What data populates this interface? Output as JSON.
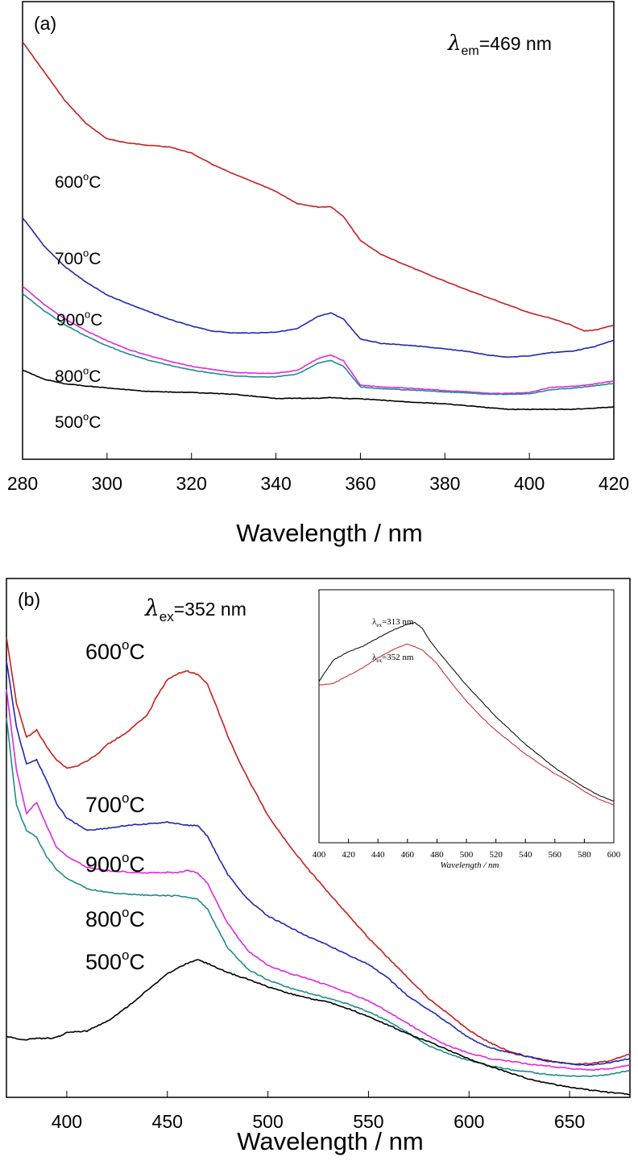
{
  "chart_data": [
    {
      "type": "line",
      "panel_label": "(a)",
      "annotation": {
        "symbol": "λ",
        "sub": "em",
        "text": "=469 nm"
      },
      "xlabel": "Wavelength / nm",
      "ylabel": "",
      "xlim": [
        280,
        420
      ],
      "ylim": [
        0,
        1
      ],
      "xticks": [
        280,
        300,
        320,
        340,
        360,
        380,
        400,
        420
      ],
      "series": [
        {
          "name": "600°C",
          "color": "#c81e1e",
          "x": [
            280,
            285,
            290,
            295,
            300,
            305,
            310,
            315,
            320,
            325,
            330,
            335,
            340,
            345,
            350,
            353,
            356,
            360,
            365,
            370,
            375,
            380,
            385,
            390,
            395,
            400,
            405,
            410,
            413,
            416,
            420
          ],
          "y": [
            0.912,
            0.848,
            0.784,
            0.734,
            0.7,
            0.691,
            0.686,
            0.682,
            0.669,
            0.644,
            0.623,
            0.605,
            0.585,
            0.559,
            0.551,
            0.552,
            0.53,
            0.478,
            0.447,
            0.427,
            0.408,
            0.389,
            0.371,
            0.354,
            0.337,
            0.32,
            0.308,
            0.293,
            0.28,
            0.283,
            0.293
          ]
        },
        {
          "name": "700°C",
          "color": "#1e28b4",
          "x": [
            280,
            285,
            290,
            295,
            300,
            305,
            310,
            315,
            320,
            325,
            330,
            335,
            340,
            345,
            350,
            353,
            356,
            360,
            365,
            370,
            375,
            380,
            385,
            390,
            395,
            400,
            405,
            410,
            415,
            420
          ],
          "y": [
            0.528,
            0.467,
            0.421,
            0.387,
            0.359,
            0.34,
            0.322,
            0.305,
            0.291,
            0.28,
            0.276,
            0.276,
            0.278,
            0.285,
            0.312,
            0.32,
            0.306,
            0.263,
            0.253,
            0.25,
            0.246,
            0.241,
            0.236,
            0.228,
            0.223,
            0.226,
            0.233,
            0.236,
            0.245,
            0.26
          ]
        },
        {
          "name": "900°C",
          "color": "#e028e0",
          "x": [
            280,
            285,
            290,
            295,
            300,
            305,
            310,
            315,
            320,
            325,
            330,
            335,
            340,
            345,
            350,
            353,
            356,
            360,
            365,
            370,
            375,
            380,
            385,
            390,
            395,
            400,
            405,
            410,
            415,
            420
          ],
          "y": [
            0.378,
            0.339,
            0.307,
            0.281,
            0.259,
            0.24,
            0.226,
            0.214,
            0.203,
            0.196,
            0.19,
            0.188,
            0.188,
            0.194,
            0.22,
            0.228,
            0.215,
            0.162,
            0.158,
            0.156,
            0.153,
            0.15,
            0.148,
            0.144,
            0.144,
            0.146,
            0.157,
            0.159,
            0.164,
            0.171
          ]
        },
        {
          "name": "800°C",
          "color": "#1e8c8c",
          "x": [
            280,
            285,
            290,
            295,
            300,
            305,
            310,
            315,
            320,
            325,
            330,
            335,
            340,
            345,
            350,
            353,
            356,
            360,
            365,
            370,
            375,
            380,
            385,
            390,
            395,
            400,
            405,
            410,
            415,
            420
          ],
          "y": [
            0.362,
            0.325,
            0.294,
            0.269,
            0.248,
            0.23,
            0.216,
            0.205,
            0.195,
            0.188,
            0.182,
            0.18,
            0.18,
            0.186,
            0.21,
            0.216,
            0.203,
            0.158,
            0.154,
            0.152,
            0.15,
            0.147,
            0.145,
            0.142,
            0.142,
            0.143,
            0.152,
            0.155,
            0.16,
            0.166
          ]
        },
        {
          "name": "500°C",
          "color": "#000000",
          "x": [
            280,
            285,
            290,
            295,
            300,
            305,
            310,
            320,
            330,
            340,
            350,
            353,
            356,
            360,
            370,
            380,
            390,
            395,
            400,
            410,
            420
          ],
          "y": [
            0.195,
            0.175,
            0.165,
            0.16,
            0.156,
            0.152,
            0.148,
            0.146,
            0.142,
            0.133,
            0.133,
            0.135,
            0.133,
            0.132,
            0.126,
            0.121,
            0.113,
            0.109,
            0.109,
            0.109,
            0.114
          ]
        }
      ]
    },
    {
      "type": "line",
      "panel_label": "(b)",
      "annotation": {
        "symbol": "λ",
        "sub": "ex",
        "text": "=352 nm"
      },
      "xlabel": "Wavelength / nm",
      "ylabel": "",
      "xlim": [
        370,
        680
      ],
      "ylim": [
        0,
        1
      ],
      "xticks": [
        400,
        450,
        500,
        550,
        600,
        650
      ],
      "series": [
        {
          "name": "600°C",
          "color": "#c81e1e",
          "x": [
            370,
            375,
            380,
            385,
            390,
            395,
            400,
            405,
            410,
            415,
            420,
            430,
            440,
            445,
            450,
            455,
            460,
            465,
            470,
            475,
            480,
            485,
            490,
            500,
            510,
            520,
            530,
            540,
            550,
            560,
            570,
            580,
            590,
            600,
            610,
            620,
            630,
            640,
            650,
            660,
            670,
            680
          ],
          "y": [
            0.97,
            0.83,
            0.759,
            0.774,
            0.739,
            0.711,
            0.694,
            0.698,
            0.709,
            0.722,
            0.743,
            0.77,
            0.805,
            0.847,
            0.88,
            0.893,
            0.898,
            0.891,
            0.871,
            0.817,
            0.762,
            0.715,
            0.672,
            0.594,
            0.534,
            0.481,
            0.432,
            0.384,
            0.336,
            0.293,
            0.25,
            0.208,
            0.175,
            0.141,
            0.116,
            0.097,
            0.085,
            0.075,
            0.071,
            0.071,
            0.077,
            0.092
          ]
        },
        {
          "name": "700°C",
          "color": "#1e28b4",
          "x": [
            370,
            375,
            380,
            385,
            390,
            395,
            400,
            410,
            420,
            430,
            440,
            450,
            455,
            460,
            465,
            470,
            475,
            480,
            490,
            500,
            510,
            520,
            530,
            540,
            550,
            560,
            570,
            580,
            590,
            600,
            610,
            620,
            630,
            640,
            650,
            660,
            670,
            680
          ],
          "y": [
            0.92,
            0.78,
            0.702,
            0.712,
            0.667,
            0.618,
            0.589,
            0.563,
            0.567,
            0.573,
            0.576,
            0.58,
            0.577,
            0.573,
            0.573,
            0.55,
            0.509,
            0.47,
            0.417,
            0.382,
            0.36,
            0.339,
            0.32,
            0.3,
            0.28,
            0.25,
            0.212,
            0.185,
            0.156,
            0.125,
            0.105,
            0.094,
            0.085,
            0.077,
            0.07,
            0.068,
            0.073,
            0.082
          ]
        },
        {
          "name": "900°C",
          "color": "#e028e0",
          "x": [
            370,
            375,
            380,
            385,
            390,
            395,
            400,
            410,
            420,
            430,
            440,
            450,
            455,
            460,
            465,
            470,
            475,
            480,
            490,
            500,
            510,
            520,
            530,
            540,
            550,
            560,
            570,
            580,
            590,
            600,
            610,
            620,
            630,
            640,
            650,
            660,
            670,
            680
          ],
          "y": [
            0.86,
            0.69,
            0.598,
            0.622,
            0.572,
            0.527,
            0.508,
            0.485,
            0.478,
            0.475,
            0.473,
            0.474,
            0.473,
            0.478,
            0.473,
            0.451,
            0.408,
            0.367,
            0.309,
            0.278,
            0.262,
            0.25,
            0.236,
            0.22,
            0.203,
            0.18,
            0.154,
            0.129,
            0.108,
            0.093,
            0.082,
            0.076,
            0.07,
            0.066,
            0.061,
            0.058,
            0.06,
            0.068
          ]
        },
        {
          "name": "800°C",
          "color": "#1e8c8c",
          "x": [
            370,
            375,
            380,
            385,
            390,
            395,
            400,
            410,
            420,
            430,
            440,
            450,
            455,
            460,
            465,
            470,
            475,
            480,
            490,
            500,
            510,
            520,
            530,
            540,
            550,
            560,
            570,
            580,
            590,
            600,
            610,
            620,
            630,
            640,
            650,
            660,
            670,
            680
          ],
          "y": [
            0.8,
            0.615,
            0.562,
            0.548,
            0.507,
            0.48,
            0.462,
            0.44,
            0.432,
            0.428,
            0.426,
            0.425,
            0.425,
            0.421,
            0.418,
            0.396,
            0.355,
            0.315,
            0.27,
            0.247,
            0.232,
            0.22,
            0.209,
            0.196,
            0.181,
            0.16,
            0.135,
            0.109,
            0.091,
            0.078,
            0.067,
            0.059,
            0.053,
            0.048,
            0.045,
            0.044,
            0.048,
            0.057
          ]
        },
        {
          "name": "500°C",
          "color": "#000000",
          "x": [
            370,
            375,
            380,
            385,
            390,
            395,
            400,
            410,
            420,
            430,
            440,
            450,
            460,
            465,
            470,
            480,
            490,
            500,
            510,
            520,
            530,
            540,
            550,
            560,
            570,
            580,
            590,
            600,
            610,
            620,
            630,
            640,
            650,
            660,
            670,
            680
          ],
          "y": [
            0.129,
            0.123,
            0.122,
            0.124,
            0.124,
            0.126,
            0.137,
            0.14,
            0.16,
            0.19,
            0.226,
            0.26,
            0.283,
            0.29,
            0.282,
            0.263,
            0.249,
            0.233,
            0.22,
            0.209,
            0.201,
            0.187,
            0.17,
            0.152,
            0.133,
            0.117,
            0.099,
            0.081,
            0.066,
            0.052,
            0.038,
            0.029,
            0.022,
            0.015,
            0.01,
            0.006
          ]
        }
      ],
      "inset": {
        "type": "line",
        "xlabel": "Wavelength / nm",
        "xlim": [
          400,
          600
        ],
        "ylim": [
          0,
          1
        ],
        "xticks": [
          400,
          420,
          440,
          460,
          480,
          500,
          520,
          540,
          560,
          580,
          600
        ],
        "series": [
          {
            "name": "λex=313 nm",
            "color": "#000000",
            "x": [
              400,
              410,
              420,
              430,
              440,
              450,
              460,
              465,
              470,
              475,
              480,
              490,
              500,
              510,
              520,
              530,
              540,
              550,
              560,
              570,
              580,
              590,
              600
            ],
            "y": [
              0.69,
              0.8,
              0.84,
              0.87,
              0.91,
              0.95,
              0.98,
              0.99,
              0.96,
              0.9,
              0.85,
              0.76,
              0.67,
              0.59,
              0.51,
              0.44,
              0.37,
              0.31,
              0.25,
              0.2,
              0.15,
              0.11,
              0.08
            ]
          },
          {
            "name": "λex=352 nm",
            "color": "#c81e1e",
            "x": [
              400,
              410,
              420,
              430,
              440,
              450,
              460,
              470,
              480,
              490,
              500,
              510,
              520,
              530,
              540,
              550,
              560,
              570,
              580,
              590,
              600
            ],
            "y": [
              0.67,
              0.68,
              0.72,
              0.76,
              0.81,
              0.85,
              0.88,
              0.85,
              0.78,
              0.68,
              0.59,
              0.51,
              0.44,
              0.38,
              0.32,
              0.27,
              0.22,
              0.18,
              0.13,
              0.09,
              0.06
            ]
          }
        ],
        "annotations": [
          {
            "symbol": "λ",
            "sub": "ex",
            "text": "=313 nm"
          },
          {
            "symbol": "λ",
            "sub": "ex",
            "text": "=352 nm"
          }
        ]
      }
    }
  ]
}
